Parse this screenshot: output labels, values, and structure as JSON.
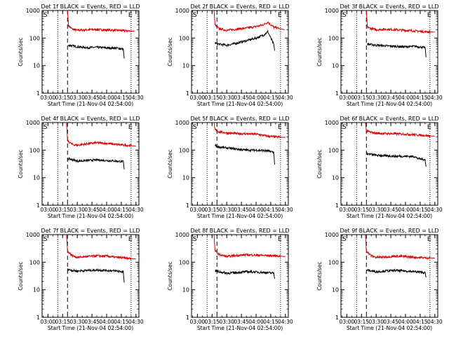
{
  "colors": {
    "events": "#000000",
    "lld": "#dd0000",
    "axes": "#000000",
    "background": "#ffffff"
  },
  "chart_data": [
    {
      "type": "line",
      "title": "Det 1f BLACK = Events, RED = LLD",
      "xlabel": "Start Time (21-Nov-04 02:54:00)",
      "ylabel": "Counts/sec",
      "x_ticks": [
        "03:00",
        "03:15",
        "03:30",
        "03:45",
        "04:00",
        "04:15",
        "04:30"
      ],
      "y_ticks": [
        "1",
        "10",
        "100",
        "1000"
      ],
      "y_scale": "log",
      "ylim": [
        1,
        1000
      ],
      "markers": {
        "start_label": "S",
        "end_label": "E"
      },
      "series": [
        {
          "color": "#dd0000",
          "time": [
            "03:20",
            "03:21",
            "03:25",
            "03:30",
            "03:40",
            "03:50",
            "04:00",
            "04:10",
            "04:18",
            "04:29"
          ],
          "values": [
            1000,
            280,
            210,
            190,
            200,
            205,
            195,
            190,
            185,
            175
          ]
        },
        {
          "color": "#000000",
          "time": [
            "03:21",
            "03:25",
            "03:30",
            "03:40",
            "03:50",
            "04:00",
            "04:10",
            "04:17",
            "04:18"
          ],
          "values": [
            55,
            52,
            48,
            45,
            46,
            44,
            43,
            40,
            18
          ]
        }
      ]
    },
    {
      "type": "line",
      "title": "Det 2f BLACK = Events, RED = LLD",
      "xlabel": "Start Time (21-Nov-04 02:54:00)",
      "ylabel": "Counts/sec",
      "x_ticks": [
        "03:00",
        "03:15",
        "03:30",
        "03:45",
        "04:00",
        "04:15",
        "04:30"
      ],
      "y_ticks": [
        "1",
        "10",
        "100",
        "1000"
      ],
      "y_scale": "log",
      "ylim": [
        1,
        1000
      ],
      "markers": {
        "start_label": "S",
        "end_label": "E"
      },
      "series": [
        {
          "color": "#dd0000",
          "time": [
            "03:17",
            "03:18",
            "03:22",
            "03:30",
            "03:40",
            "03:50",
            "04:00",
            "04:08",
            "04:12",
            "04:18",
            "04:29"
          ],
          "values": [
            1000,
            300,
            220,
            190,
            210,
            230,
            260,
            310,
            380,
            250,
            200
          ]
        },
        {
          "color": "#000000",
          "time": [
            "03:18",
            "03:22",
            "03:30",
            "03:40",
            "03:50",
            "04:00",
            "04:08",
            "04:12",
            "04:18",
            "04:19"
          ],
          "values": [
            65,
            60,
            55,
            65,
            80,
            100,
            130,
            170,
            60,
            35
          ]
        }
      ]
    },
    {
      "type": "line",
      "title": "Det 3f BLACK = Events, RED = LLD",
      "xlabel": "Start Time (21-Nov-04 02:54:00)",
      "ylabel": "Counts/sec",
      "x_ticks": [
        "03:00",
        "03:15",
        "03:30",
        "03:45",
        "04:00",
        "04:15",
        "04:30"
      ],
      "y_ticks": [
        "1",
        "10",
        "100",
        "1000"
      ],
      "y_scale": "log",
      "ylim": [
        1,
        1000
      ],
      "markers": {
        "start_label": "S",
        "end_label": "E"
      },
      "series": [
        {
          "color": "#dd0000",
          "time": [
            "03:20",
            "03:21",
            "03:25",
            "03:30",
            "03:40",
            "03:50",
            "04:00",
            "04:10",
            "04:20",
            "04:30"
          ],
          "values": [
            1000,
            250,
            220,
            200,
            210,
            200,
            190,
            180,
            170,
            165
          ]
        },
        {
          "color": "#000000",
          "time": [
            "03:21",
            "03:25",
            "03:30",
            "03:40",
            "03:50",
            "04:00",
            "04:10",
            "04:20",
            "04:21"
          ],
          "values": [
            60,
            58,
            55,
            52,
            50,
            48,
            50,
            45,
            20
          ]
        }
      ]
    },
    {
      "type": "line",
      "title": "Det 4f BLACK = Events, RED = LLD",
      "xlabel": "Start Time (21-Nov-04 02:54:00)",
      "ylabel": "Counts/sec",
      "x_ticks": [
        "03:00",
        "03:15",
        "03:30",
        "03:45",
        "04:00",
        "04:15",
        "04:30"
      ],
      "y_ticks": [
        "1",
        "10",
        "100",
        "1000"
      ],
      "y_scale": "log",
      "ylim": [
        1,
        1000
      ],
      "markers": {
        "start_label": "S",
        "end_label": "E"
      },
      "series": [
        {
          "color": "#dd0000",
          "time": [
            "03:19",
            "03:20",
            "03:25",
            "03:30",
            "03:40",
            "03:50",
            "04:00",
            "04:10",
            "04:20",
            "04:30"
          ],
          "values": [
            1000,
            220,
            160,
            150,
            170,
            185,
            175,
            160,
            150,
            140
          ]
        },
        {
          "color": "#000000",
          "time": [
            "03:20",
            "03:25",
            "03:30",
            "03:40",
            "03:50",
            "04:00",
            "04:10",
            "04:17",
            "04:18"
          ],
          "values": [
            50,
            45,
            40,
            42,
            44,
            42,
            40,
            38,
            20
          ]
        }
      ]
    },
    {
      "type": "line",
      "title": "Det 5f BLACK = Events, RED = LLD",
      "xlabel": "Start Time (21-Nov-04 02:54:00)",
      "ylabel": "Counts/sec",
      "x_ticks": [
        "03:00",
        "03:15",
        "03:30",
        "03:45",
        "04:00",
        "04:15",
        "04:30"
      ],
      "y_ticks": [
        "1",
        "10",
        "100",
        "1000"
      ],
      "y_scale": "log",
      "ylim": [
        1,
        1000
      ],
      "markers": {
        "start_label": "S",
        "end_label": "E"
      },
      "series": [
        {
          "color": "#dd0000",
          "time": [
            "03:17",
            "03:18",
            "03:22",
            "03:30",
            "03:40",
            "03:50",
            "04:00",
            "04:10",
            "04:20",
            "04:30"
          ],
          "values": [
            1000,
            550,
            460,
            420,
            400,
            390,
            380,
            330,
            300,
            290
          ]
        },
        {
          "color": "#000000",
          "time": [
            "03:18",
            "03:22",
            "03:30",
            "03:40",
            "03:50",
            "04:00",
            "04:10",
            "04:18",
            "04:19"
          ],
          "values": [
            150,
            130,
            120,
            110,
            100,
            100,
            95,
            85,
            30
          ]
        }
      ]
    },
    {
      "type": "line",
      "title": "Det 6f BLACK = Events, RED = LLD",
      "xlabel": "Start Time (21-Nov-04 02:54:00)",
      "ylabel": "Counts/sec",
      "x_ticks": [
        "03:00",
        "03:15",
        "03:30",
        "03:45",
        "04:00",
        "04:15",
        "04:30"
      ],
      "y_ticks": [
        "1",
        "10",
        "100",
        "1000"
      ],
      "y_scale": "log",
      "ylim": [
        1,
        1000
      ],
      "markers": {
        "start_label": "S",
        "end_label": "E"
      },
      "series": [
        {
          "color": "#dd0000",
          "time": [
            "03:19",
            "03:20",
            "03:25",
            "03:30",
            "03:40",
            "03:50",
            "04:00",
            "04:10",
            "04:20",
            "04:30"
          ],
          "values": [
            1000,
            500,
            440,
            410,
            400,
            390,
            380,
            360,
            340,
            320
          ]
        },
        {
          "color": "#000000",
          "time": [
            "03:20",
            "03:25",
            "03:30",
            "03:40",
            "03:50",
            "04:00",
            "04:10",
            "04:12",
            "04:20",
            "04:21"
          ],
          "values": [
            75,
            70,
            65,
            62,
            60,
            60,
            58,
            50,
            45,
            25
          ]
        }
      ]
    },
    {
      "type": "line",
      "title": "Det 7f BLACK = Events, RED = LLD",
      "xlabel": "Start Time (21-Nov-04 02:54:00)",
      "ylabel": "Counts/sec",
      "x_ticks": [
        "03:00",
        "03:15",
        "03:30",
        "03:45",
        "04:00",
        "04:15",
        "04:30"
      ],
      "y_ticks": [
        "1",
        "10",
        "100",
        "1000"
      ],
      "y_scale": "log",
      "ylim": [
        1,
        1000
      ],
      "markers": {
        "start_label": "S",
        "end_label": "E"
      },
      "series": [
        {
          "color": "#dd0000",
          "time": [
            "03:19",
            "03:20",
            "03:25",
            "03:30",
            "03:40",
            "03:50",
            "04:00",
            "04:10",
            "04:20",
            "04:30"
          ],
          "values": [
            1000,
            250,
            170,
            150,
            160,
            170,
            165,
            150,
            140,
            130
          ]
        },
        {
          "color": "#000000",
          "time": [
            "03:20",
            "03:25",
            "03:30",
            "03:40",
            "03:50",
            "04:00",
            "04:10",
            "04:17",
            "04:18"
          ],
          "values": [
            55,
            50,
            48,
            50,
            52,
            50,
            48,
            45,
            18
          ]
        }
      ]
    },
    {
      "type": "line",
      "title": "Det 8f BLACK = Events, RED = LLD",
      "xlabel": "Start Time (21-Nov-04 02:54:00)",
      "ylabel": "Counts/sec",
      "x_ticks": [
        "03:00",
        "03:15",
        "03:30",
        "03:45",
        "04:00",
        "04:15",
        "04:30"
      ],
      "y_ticks": [
        "1",
        "10",
        "100",
        "1000"
      ],
      "y_scale": "log",
      "ylim": [
        1,
        1000
      ],
      "markers": {
        "start_label": "S",
        "end_label": "E"
      },
      "series": [
        {
          "color": "#dd0000",
          "time": [
            "03:17",
            "03:18",
            "03:22",
            "03:30",
            "03:40",
            "03:50",
            "04:00",
            "04:10",
            "04:20",
            "04:30"
          ],
          "values": [
            1000,
            260,
            190,
            160,
            175,
            185,
            180,
            175,
            170,
            160
          ]
        },
        {
          "color": "#000000",
          "time": [
            "03:18",
            "03:22",
            "03:30",
            "03:40",
            "03:50",
            "04:00",
            "04:10",
            "04:18",
            "04:19"
          ],
          "values": [
            50,
            45,
            40,
            42,
            45,
            44,
            42,
            40,
            25
          ]
        }
      ]
    },
    {
      "type": "line",
      "title": "Det 9f BLACK = Events, RED = LLD",
      "xlabel": "Start Time (21-Nov-04 02:54:00)",
      "ylabel": "Counts/sec",
      "x_ticks": [
        "03:00",
        "03:15",
        "03:30",
        "03:45",
        "04:00",
        "04:15",
        "04:30"
      ],
      "y_ticks": [
        "1",
        "10",
        "100",
        "1000"
      ],
      "y_scale": "log",
      "ylim": [
        1,
        1000
      ],
      "markers": {
        "start_label": "S",
        "end_label": "E"
      },
      "series": [
        {
          "color": "#dd0000",
          "time": [
            "03:19",
            "03:20",
            "03:25",
            "03:30",
            "03:40",
            "03:50",
            "04:00",
            "04:10",
            "04:20",
            "04:30"
          ],
          "values": [
            1000,
            260,
            170,
            150,
            155,
            165,
            160,
            150,
            145,
            140
          ]
        },
        {
          "color": "#000000",
          "time": [
            "03:20",
            "03:25",
            "03:30",
            "03:40",
            "03:50",
            "04:00",
            "04:10",
            "04:20",
            "04:21"
          ],
          "values": [
            52,
            48,
            45,
            48,
            50,
            48,
            45,
            42,
            28
          ]
        }
      ]
    }
  ]
}
